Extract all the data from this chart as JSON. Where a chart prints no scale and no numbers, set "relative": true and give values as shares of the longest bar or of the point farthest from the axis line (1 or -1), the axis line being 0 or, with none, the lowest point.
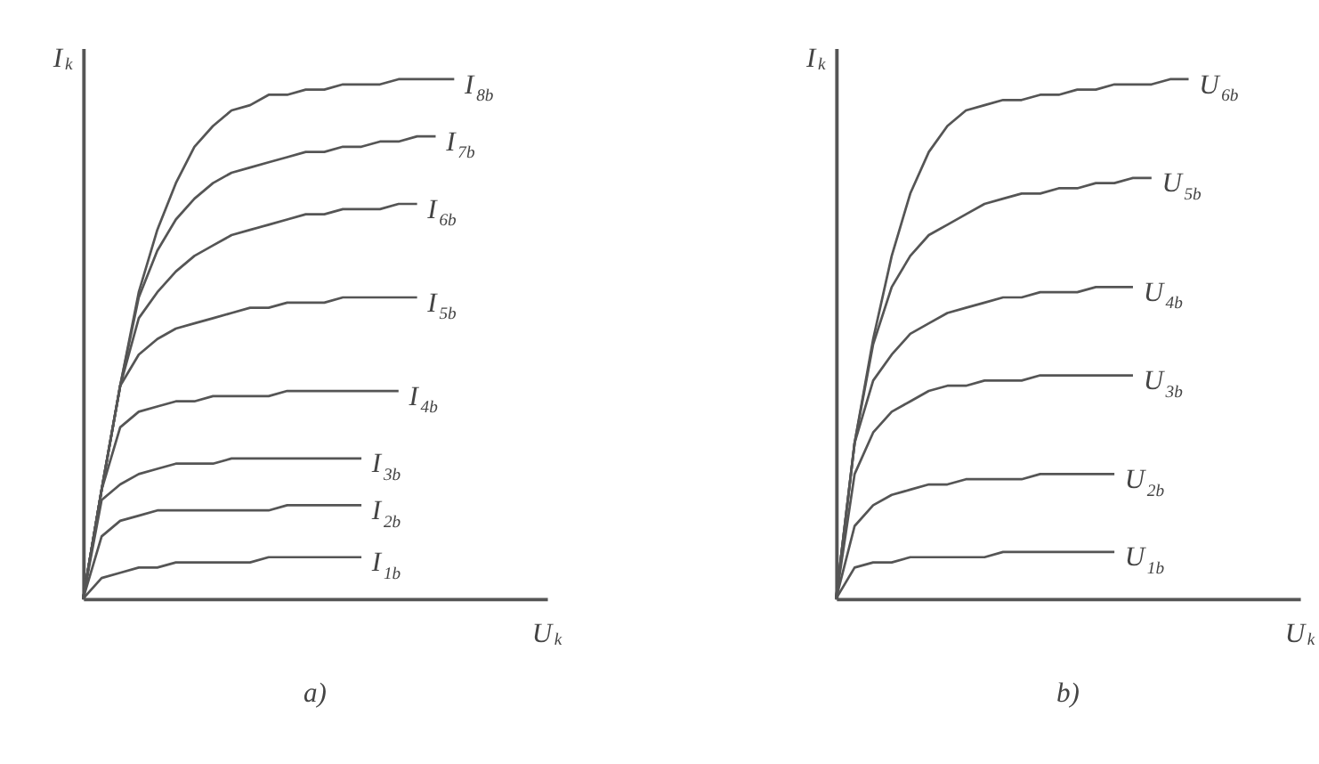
{
  "chart_data": [
    {
      "type": "line",
      "title": "a)",
      "xlabel": "U$_{k}$",
      "ylabel": "I$_{k}$",
      "relative": true,
      "categories": [
        null,
        null,
        null,
        null,
        null,
        null,
        null,
        null,
        null,
        null,
        null,
        null,
        null,
        null,
        null,
        null,
        null,
        null,
        null,
        null,
        null,
        null,
        null,
        null,
        null,
        null
      ],
      "series": [
        {
          "name": "I$_{8b}$",
          "color": "#555555",
          "values": [
            0,
            0.21,
            0.41,
            0.59,
            0.71,
            0.8,
            0.87,
            0.91,
            0.94,
            0.95,
            0.97,
            0.97,
            0.98,
            0.98,
            0.99,
            0.99,
            0.99,
            1.0,
            1.0,
            1.0,
            1.0,
            null,
            null,
            null,
            null,
            null
          ]
        },
        {
          "name": "I$_{7b}$",
          "color": "#555555",
          "values": [
            0,
            0.21,
            0.41,
            0.58,
            0.67,
            0.73,
            0.77,
            0.8,
            0.82,
            0.83,
            0.84,
            0.85,
            0.86,
            0.86,
            0.87,
            0.87,
            0.88,
            0.88,
            0.89,
            0.89,
            null,
            null,
            null,
            null,
            null,
            null
          ]
        },
        {
          "name": "I$_{6b}$",
          "color": "#555555",
          "values": [
            0,
            0.21,
            0.41,
            0.54,
            0.59,
            0.63,
            0.66,
            0.68,
            0.7,
            0.71,
            0.72,
            0.73,
            0.74,
            0.74,
            0.75,
            0.75,
            0.75,
            0.76,
            0.76,
            null,
            null,
            null,
            null,
            null,
            null,
            null
          ]
        },
        {
          "name": "I$_{5b}$",
          "color": "#555555",
          "values": [
            0,
            0.21,
            0.41,
            0.47,
            0.5,
            0.52,
            0.53,
            0.54,
            0.55,
            0.56,
            0.56,
            0.57,
            0.57,
            0.57,
            0.58,
            0.58,
            0.58,
            0.58,
            0.58,
            null,
            null,
            null,
            null,
            null,
            null,
            null
          ]
        },
        {
          "name": "I$_{4b}$",
          "color": "#555555",
          "values": [
            0,
            0.21,
            0.33,
            0.36,
            0.37,
            0.38,
            0.38,
            0.39,
            0.39,
            0.39,
            0.39,
            0.4,
            0.4,
            0.4,
            0.4,
            0.4,
            0.4,
            0.4,
            null,
            null,
            null,
            null,
            null,
            null,
            null,
            null
          ]
        },
        {
          "name": "I$_{3b}$",
          "color": "#555555",
          "values": [
            0,
            0.19,
            0.22,
            0.24,
            0.25,
            0.26,
            0.26,
            0.26,
            0.27,
            0.27,
            0.27,
            0.27,
            0.27,
            0.27,
            0.27,
            0.27,
            null,
            null,
            null,
            null,
            null,
            null,
            null,
            null,
            null,
            null
          ]
        },
        {
          "name": "I$_{2b}$",
          "color": "#555555",
          "values": [
            0,
            0.12,
            0.15,
            0.16,
            0.17,
            0.17,
            0.17,
            0.17,
            0.17,
            0.17,
            0.17,
            0.18,
            0.18,
            0.18,
            0.18,
            0.18,
            null,
            null,
            null,
            null,
            null,
            null,
            null,
            null,
            null,
            null
          ]
        },
        {
          "name": "I$_{1b}$",
          "color": "#555555",
          "values": [
            0,
            0.04,
            0.05,
            0.06,
            0.06,
            0.07,
            0.07,
            0.07,
            0.07,
            0.07,
            0.08,
            0.08,
            0.08,
            0.08,
            0.08,
            0.08,
            null,
            null,
            null,
            null,
            null,
            null,
            null,
            null,
            null,
            null
          ]
        }
      ]
    },
    {
      "type": "line",
      "title": "b)",
      "xlabel": "U$_{k}$",
      "ylabel": "I$_{k}$",
      "relative": true,
      "categories": [
        null,
        null,
        null,
        null,
        null,
        null,
        null,
        null,
        null,
        null,
        null,
        null,
        null,
        null,
        null,
        null,
        null,
        null,
        null,
        null,
        null,
        null,
        null,
        null,
        null,
        null
      ],
      "series": [
        {
          "name": "U$_{6b}$",
          "color": "#555555",
          "values": [
            0,
            0.3,
            0.5,
            0.66,
            0.78,
            0.86,
            0.91,
            0.94,
            0.95,
            0.96,
            0.96,
            0.97,
            0.97,
            0.98,
            0.98,
            0.99,
            0.99,
            0.99,
            1.0,
            1.0,
            null,
            null,
            null,
            null,
            null,
            null
          ]
        },
        {
          "name": "U$_{5b}$",
          "color": "#555555",
          "values": [
            0,
            0.3,
            0.49,
            0.6,
            0.66,
            0.7,
            0.72,
            0.74,
            0.76,
            0.77,
            0.78,
            0.78,
            0.79,
            0.79,
            0.8,
            0.8,
            0.81,
            0.81,
            null,
            null,
            null,
            null,
            null,
            null,
            null,
            null
          ]
        },
        {
          "name": "U$_{4b}$",
          "color": "#555555",
          "values": [
            0,
            0.3,
            0.42,
            0.47,
            0.51,
            0.53,
            0.55,
            0.56,
            0.57,
            0.58,
            0.58,
            0.59,
            0.59,
            0.59,
            0.6,
            0.6,
            0.6,
            null,
            null,
            null,
            null,
            null,
            null,
            null,
            null,
            null
          ]
        },
        {
          "name": "U$_{3b}$",
          "color": "#555555",
          "values": [
            0,
            0.24,
            0.32,
            0.36,
            0.38,
            0.4,
            0.41,
            0.41,
            0.42,
            0.42,
            0.42,
            0.43,
            0.43,
            0.43,
            0.43,
            0.43,
            0.43,
            null,
            null,
            null,
            null,
            null,
            null,
            null,
            null,
            null
          ]
        },
        {
          "name": "U$_{2b}$",
          "color": "#555555",
          "values": [
            0,
            0.14,
            0.18,
            0.2,
            0.21,
            0.22,
            0.22,
            0.23,
            0.23,
            0.23,
            0.23,
            0.24,
            0.24,
            0.24,
            0.24,
            0.24,
            null,
            null,
            null,
            null,
            null,
            null,
            null,
            null,
            null,
            null
          ]
        },
        {
          "name": "U$_{1b}$",
          "color": "#555555",
          "values": [
            0,
            0.06,
            0.07,
            0.07,
            0.08,
            0.08,
            0.08,
            0.08,
            0.08,
            0.09,
            0.09,
            0.09,
            0.09,
            0.09,
            0.09,
            0.09,
            null,
            null,
            null,
            null,
            null,
            null,
            null,
            null,
            null,
            null
          ]
        }
      ]
    }
  ]
}
